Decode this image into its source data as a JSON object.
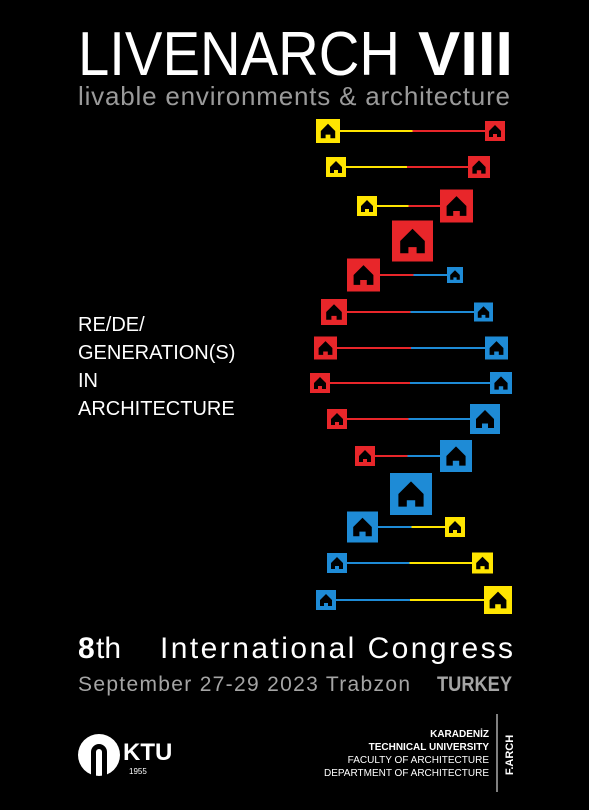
{
  "header": {
    "title": "LIVENARCH",
    "edition": "VIII",
    "subtitle": "livable environments & architecture"
  },
  "theme": {
    "lines": [
      "RE/DE/",
      "GENERATION(S)",
      "IN",
      "ARCHITECTURE"
    ]
  },
  "congress": {
    "ordinal_number": "8",
    "ordinal_suffix": "th",
    "name": "International Congress",
    "date_place": "September  27-29  2023  Trabzon",
    "country": "TURKEY"
  },
  "logo": {
    "name": "KTU",
    "year": "1955"
  },
  "affiliation": {
    "lines": [
      "KARADENİZ",
      "TECHNICAL UNIVERSITY",
      "FACULTY OF ARCHITECTURE",
      "DEPARTMENT OF ARCHITECTURE"
    ],
    "short": "F.ARCH"
  }
}
